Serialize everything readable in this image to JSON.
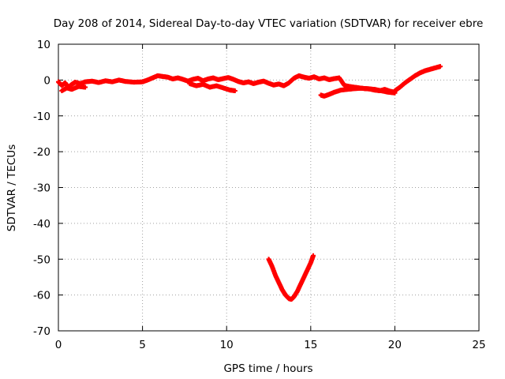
{
  "chart_data": {
    "type": "scatter",
    "title": "Day 208 of 2014, Sidereal Day-to-day VTEC variation (SDTVAR) for receiver ebre",
    "xlabel": "GPS time / hours",
    "ylabel": "SDTVAR / TECUs",
    "xlim": [
      0,
      25
    ],
    "ylim": [
      -70,
      10
    ],
    "xticks": [
      0,
      5,
      10,
      15,
      20,
      25
    ],
    "yticks": [
      10,
      0,
      -10,
      -20,
      -30,
      -40,
      -50,
      -60,
      -70
    ],
    "grid": true,
    "marker": "+",
    "series": [
      {
        "name": "SDTVAR",
        "color": "#ff0000",
        "segments": [
          {
            "x": [
              0.0,
              0.2,
              0.4,
              0.6,
              0.8,
              1.0,
              1.3,
              1.6,
              2.0,
              2.4,
              2.8,
              3.2,
              3.6,
              4.0,
              4.5,
              5.0,
              5.3,
              5.6,
              5.9,
              6.2,
              6.5,
              6.8,
              7.1,
              7.4,
              7.7,
              8.0,
              8.3,
              8.6,
              8.9,
              9.2,
              9.5,
              9.8,
              10.1,
              10.4,
              10.7,
              11.0,
              11.3,
              11.6,
              11.9,
              12.2,
              12.5,
              12.8,
              13.1,
              13.4,
              13.7,
              14.0,
              14.3,
              14.6,
              14.9,
              15.2,
              15.5,
              15.8,
              16.1,
              16.4,
              16.7,
              17.0,
              17.3,
              17.6,
              17.9,
              18.2,
              18.5,
              18.8,
              19.1,
              19.4,
              19.7,
              20.0
            ],
            "y": [
              -0.5,
              -1.5,
              -0.8,
              -2.0,
              -1.2,
              -0.6,
              -1.0,
              -0.5,
              -0.3,
              -0.7,
              -0.2,
              -0.5,
              0.0,
              -0.4,
              -0.6,
              -0.5,
              0.0,
              0.6,
              1.2,
              1.0,
              0.8,
              0.3,
              0.6,
              0.2,
              -0.3,
              0.2,
              0.5,
              -0.2,
              0.3,
              0.6,
              0.1,
              0.4,
              0.7,
              0.2,
              -0.4,
              -0.8,
              -0.5,
              -1.0,
              -0.6,
              -0.3,
              -0.9,
              -1.4,
              -1.1,
              -1.6,
              -0.8,
              0.5,
              1.2,
              0.8,
              0.5,
              0.9,
              0.3,
              0.6,
              0.1,
              0.4,
              0.6,
              -1.5,
              -1.8,
              -2.0,
              -2.2,
              -2.4,
              -2.5,
              -2.8,
              -3.0,
              -2.6,
              -3.1,
              -3.4
            ]
          },
          {
            "x": [
              0.2,
              0.5,
              0.8,
              1.2,
              1.6
            ],
            "y": [
              -3.0,
              -2.2,
              -2.6,
              -1.8,
              -2.0
            ]
          },
          {
            "x": [
              7.8,
              8.2,
              8.6,
              9.0,
              9.4,
              9.8,
              10.2,
              10.5
            ],
            "y": [
              -1.0,
              -1.6,
              -1.2,
              -2.0,
              -1.6,
              -2.2,
              -2.8,
              -3.0
            ]
          },
          {
            "x": [
              15.6,
              15.8,
              16.1,
              16.4,
              16.8,
              17.2,
              17.6,
              18.0,
              18.4,
              18.8,
              19.2,
              19.6,
              20.0
            ],
            "y": [
              -4.2,
              -4.5,
              -4.0,
              -3.4,
              -2.8,
              -2.6,
              -2.4,
              -2.3,
              -2.4,
              -2.6,
              -3.0,
              -3.4,
              -3.6
            ]
          },
          {
            "x": [
              20.0,
              20.3,
              20.6,
              20.9,
              21.2,
              21.5,
              21.8,
              22.1,
              22.4,
              22.7
            ],
            "y": [
              -3.0,
              -2.0,
              -0.8,
              0.2,
              1.2,
              2.0,
              2.6,
              3.0,
              3.4,
              3.8
            ]
          },
          {
            "x": [
              12.5,
              12.7,
              12.9,
              13.1,
              13.3,
              13.5,
              13.7,
              13.85,
              14.0,
              14.2,
              14.4,
              14.6,
              14.8,
              15.0,
              15.15
            ],
            "y": [
              -50.0,
              -52.0,
              -54.5,
              -56.5,
              -58.5,
              -60.0,
              -61.0,
              -61.2,
              -60.5,
              -59.0,
              -57.0,
              -55.0,
              -53.0,
              -51.0,
              -49.0
            ]
          }
        ]
      }
    ]
  }
}
